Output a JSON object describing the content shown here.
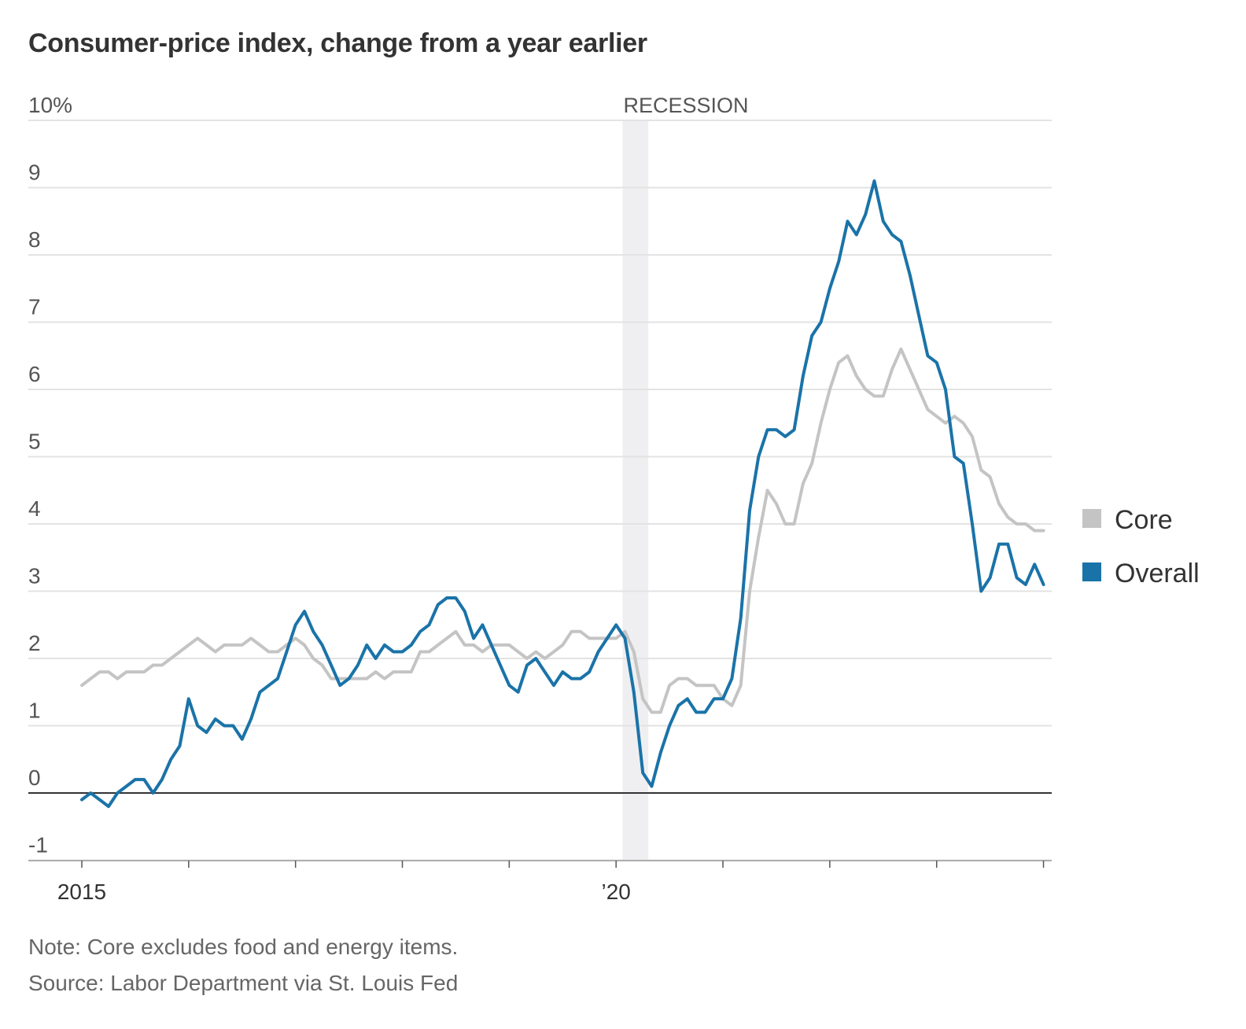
{
  "title": "Consumer-price index, change from a year earlier",
  "note": "Note: Core excludes food and energy items.",
  "source": "Source: Labor Department via St. Louis Fed",
  "colors": {
    "core": "#c4c4c4",
    "overall": "#1a73a8",
    "recession": "#efeff1",
    "grid": "#e3e3e3",
    "zero": "#333333"
  },
  "chart_data": {
    "type": "line",
    "x_start": "2015-01",
    "x_frequency": "monthly",
    "x_ticks": [
      {
        "year": 2015,
        "label": "2015"
      },
      {
        "year": 2016,
        "label": ""
      },
      {
        "year": 2017,
        "label": ""
      },
      {
        "year": 2018,
        "label": ""
      },
      {
        "year": 2019,
        "label": ""
      },
      {
        "year": 2020,
        "label": "’20"
      },
      {
        "year": 2021,
        "label": ""
      },
      {
        "year": 2022,
        "label": ""
      },
      {
        "year": 2023,
        "label": ""
      },
      {
        "year": 2024,
        "label": ""
      }
    ],
    "y_ticks": [
      {
        "value": 10,
        "label": "10%"
      },
      {
        "value": 9,
        "label": "9"
      },
      {
        "value": 8,
        "label": "8"
      },
      {
        "value": 7,
        "label": "7"
      },
      {
        "value": 6,
        "label": "6"
      },
      {
        "value": 5,
        "label": "5"
      },
      {
        "value": 4,
        "label": "4"
      },
      {
        "value": 3,
        "label": "3"
      },
      {
        "value": 2,
        "label": "2"
      },
      {
        "value": 1,
        "label": "1"
      },
      {
        "value": 0,
        "label": "0"
      },
      {
        "value": -1,
        "label": "-1"
      }
    ],
    "ylim": [
      -1,
      10
    ],
    "grid": true,
    "legend_position": "right",
    "recession": {
      "label": "RECESSION",
      "start": "2020-02",
      "end": "2020-04"
    },
    "series": [
      {
        "name": "Core",
        "color": "#c4c4c4",
        "values": [
          1.6,
          1.7,
          1.8,
          1.8,
          1.7,
          1.8,
          1.8,
          1.8,
          1.9,
          1.9,
          2.0,
          2.1,
          2.2,
          2.3,
          2.2,
          2.1,
          2.2,
          2.2,
          2.2,
          2.3,
          2.2,
          2.1,
          2.1,
          2.2,
          2.3,
          2.2,
          2.0,
          1.9,
          1.7,
          1.7,
          1.7,
          1.7,
          1.7,
          1.8,
          1.7,
          1.8,
          1.8,
          1.8,
          2.1,
          2.1,
          2.2,
          2.3,
          2.4,
          2.2,
          2.2,
          2.1,
          2.2,
          2.2,
          2.2,
          2.1,
          2.0,
          2.1,
          2.0,
          2.1,
          2.2,
          2.4,
          2.4,
          2.3,
          2.3,
          2.3,
          2.3,
          2.4,
          2.1,
          1.4,
          1.2,
          1.2,
          1.6,
          1.7,
          1.7,
          1.6,
          1.6,
          1.6,
          1.4,
          1.3,
          1.6,
          3.0,
          3.8,
          4.5,
          4.3,
          4.0,
          4.0,
          4.6,
          4.9,
          5.5,
          6.0,
          6.4,
          6.5,
          6.2,
          6.0,
          5.9,
          5.9,
          6.3,
          6.6,
          6.3,
          6.0,
          5.7,
          5.6,
          5.5,
          5.6,
          5.5,
          5.3,
          4.8,
          4.7,
          4.3,
          4.1,
          4.0,
          4.0,
          3.9,
          3.9
        ]
      },
      {
        "name": "Overall",
        "color": "#1a73a8",
        "values": [
          -0.1,
          0.0,
          -0.1,
          -0.2,
          0.0,
          0.1,
          0.2,
          0.2,
          0.0,
          0.2,
          0.5,
          0.7,
          1.4,
          1.0,
          0.9,
          1.1,
          1.0,
          1.0,
          0.8,
          1.1,
          1.5,
          1.6,
          1.7,
          2.1,
          2.5,
          2.7,
          2.4,
          2.2,
          1.9,
          1.6,
          1.7,
          1.9,
          2.2,
          2.0,
          2.2,
          2.1,
          2.1,
          2.2,
          2.4,
          2.5,
          2.8,
          2.9,
          2.9,
          2.7,
          2.3,
          2.5,
          2.2,
          1.9,
          1.6,
          1.5,
          1.9,
          2.0,
          1.8,
          1.6,
          1.8,
          1.7,
          1.7,
          1.8,
          2.1,
          2.3,
          2.5,
          2.3,
          1.5,
          0.3,
          0.1,
          0.6,
          1.0,
          1.3,
          1.4,
          1.2,
          1.2,
          1.4,
          1.4,
          1.7,
          2.6,
          4.2,
          5.0,
          5.4,
          5.4,
          5.3,
          5.4,
          6.2,
          6.8,
          7.0,
          7.5,
          7.9,
          8.5,
          8.3,
          8.6,
          9.1,
          8.5,
          8.3,
          8.2,
          7.7,
          7.1,
          6.5,
          6.4,
          6.0,
          5.0,
          4.9,
          4.0,
          3.0,
          3.2,
          3.7,
          3.7,
          3.2,
          3.1,
          3.4,
          3.1
        ]
      }
    ]
  }
}
